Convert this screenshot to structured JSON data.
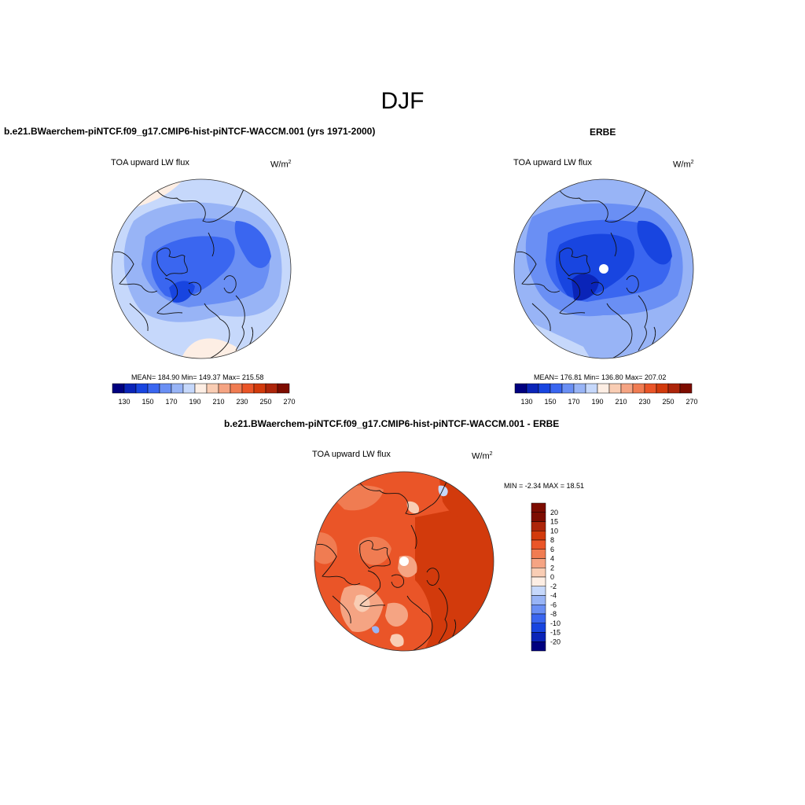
{
  "suptitle": "DJF",
  "panels": [
    {
      "title": "b.e21.BWaerchem-piNTCF.f09_g17.CMIP6-hist-piNTCF-WACCM.001 (yrs 1971-2000)",
      "variable": "TOA upward LW flux",
      "units_base": "W/m",
      "units_exp": "2",
      "stats": "MEAN= 184.90  Min= 149.37  Max= 215.58",
      "colorbar_labels": [
        "130",
        "150",
        "170",
        "190",
        "210",
        "230",
        "250",
        "270"
      ]
    },
    {
      "title": "ERBE",
      "variable": "TOA upward LW flux",
      "units_base": "W/m",
      "units_exp": "2",
      "stats": "MEAN= 176.81  Min= 136.80  Max= 207.02",
      "colorbar_labels": [
        "130",
        "150",
        "170",
        "190",
        "210",
        "230",
        "250",
        "270"
      ]
    },
    {
      "title": "b.e21.BWaerchem-piNTCF.f09_g17.CMIP6-hist-piNTCF-WACCM.001 - ERBE",
      "variable": "TOA upward LW flux",
      "units_base": "W/m",
      "units_exp": "2",
      "stats": "MIN =  -2.34 MAX =  18.51",
      "colorbar_labels": [
        "20",
        "15",
        "10",
        "8",
        "6",
        "4",
        "2",
        "0",
        "-2",
        "-4",
        "-6",
        "-8",
        "-10",
        "-15",
        "-20"
      ]
    }
  ],
  "colors": {
    "abs_scale": [
      "#00007f",
      "#0a24b8",
      "#1845e0",
      "#3a66f0",
      "#6a8ff4",
      "#98b4f6",
      "#c6d8fb",
      "#fdeee4",
      "#f9cdb4",
      "#f5a483",
      "#f07c52",
      "#ea5528",
      "#d23a0c",
      "#ad250a",
      "#7d0c00"
    ],
    "diff_scale": [
      "#7d0c00",
      "#ad250a",
      "#d23a0c",
      "#ea5528",
      "#f07c52",
      "#f5a483",
      "#f9cdb4",
      "#fdeee4",
      "#c6d8fb",
      "#98b4f6",
      "#6a8ff4",
      "#3a66f0",
      "#1845e0",
      "#0a24b8",
      "#00007f"
    ]
  }
}
